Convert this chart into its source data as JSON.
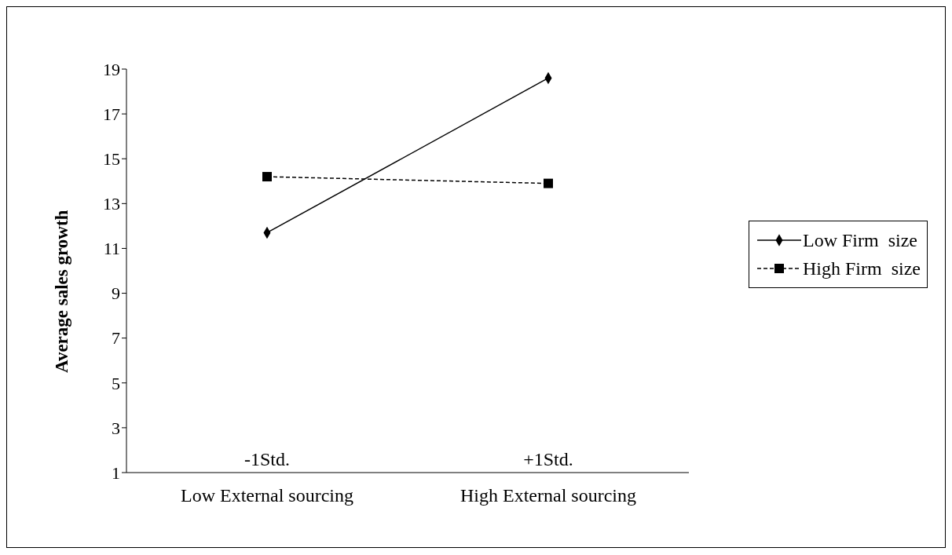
{
  "chart_data": {
    "type": "line",
    "ylabel": "Average sales growth",
    "categories": [
      "Low External sourcing",
      "High External sourcing"
    ],
    "series": [
      {
        "name": "Low Firm  size",
        "color": "#000000",
        "values": [
          11.7,
          18.6
        ],
        "marker": "diamond",
        "line_style": "solid"
      },
      {
        "name": "High Firm  size",
        "color": "#000000",
        "values": [
          14.2,
          13.9
        ],
        "marker": "square",
        "line_style": "dashed"
      }
    ],
    "ylim": [
      1,
      19
    ],
    "yticks": [
      1,
      3,
      5,
      7,
      9,
      11,
      13,
      15,
      17,
      19
    ],
    "grid": false,
    "legend": "right",
    "annotations": [
      "-1Std.",
      "+1Std."
    ]
  }
}
